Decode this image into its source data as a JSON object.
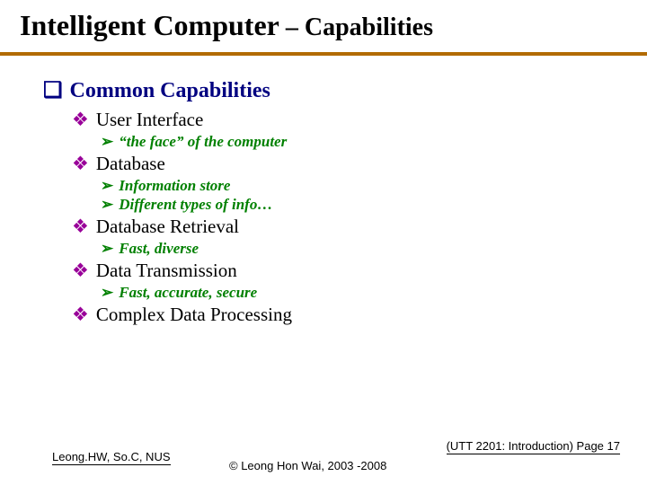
{
  "title_main": "Intelligent Computer",
  "title_sep": " – ",
  "title_sub": "Capabilities",
  "hr_color": "#b26b00",
  "bullets": {
    "square": "❑",
    "diamond": "❖",
    "arrow": "➢"
  },
  "colors": {
    "lvl1": "#000080",
    "lvl2_bullet": "#990099",
    "lvl2_text": "#000000",
    "lvl3": "#008000"
  },
  "section": "Common Capabilities",
  "items": [
    {
      "label": "User Interface",
      "subs": [
        "“the face” of the computer"
      ]
    },
    {
      "label": "Database",
      "subs": [
        "Information store",
        "Different types of info…"
      ]
    },
    {
      "label": "Database Retrieval",
      "subs": [
        "Fast, diverse"
      ]
    },
    {
      "label": "Data Transmission",
      "subs": [
        "Fast, accurate, secure"
      ]
    },
    {
      "label": "Complex Data Processing",
      "subs": []
    }
  ],
  "footer": {
    "left": "Leong.HW, So.C, NUS",
    "mid": "© Leong Hon Wai, 2003 -2008",
    "right": "(UTT 2201: Introduction) Page 17"
  }
}
